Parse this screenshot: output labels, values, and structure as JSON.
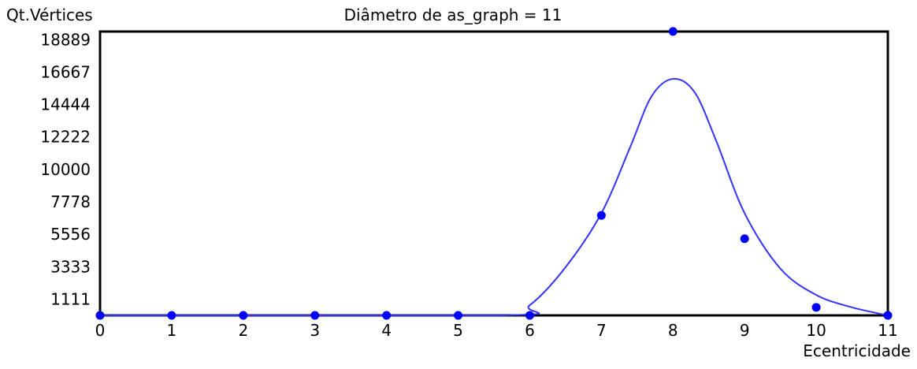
{
  "chart_data": {
    "type": "scatter",
    "title": "Diâmetro de as_graph = 11",
    "ylabel": "Qt.Vértices",
    "xlabel": "Ecentricidade",
    "x_ticks": [
      "0",
      "1",
      "2",
      "3",
      "4",
      "5",
      "6",
      "7",
      "8",
      "9",
      "10",
      "11"
    ],
    "y_ticks": [
      "1111",
      "3333",
      "5556",
      "7778",
      "10000",
      "12222",
      "14444",
      "16667",
      "18889"
    ],
    "xlim": [
      0,
      11
    ],
    "ylim": [
      0,
      19444
    ],
    "grid": false,
    "colors": {
      "points": "#0000ff",
      "curve": "#3333ff",
      "frame": "#000000"
    },
    "points": [
      {
        "x": 0,
        "y": 0
      },
      {
        "x": 1,
        "y": 0
      },
      {
        "x": 2,
        "y": 0
      },
      {
        "x": 3,
        "y": 0
      },
      {
        "x": 4,
        "y": 0
      },
      {
        "x": 5,
        "y": 0
      },
      {
        "x": 6,
        "y": 0
      },
      {
        "x": 7,
        "y": 6850
      },
      {
        "x": 8,
        "y": 19450
      },
      {
        "x": 9,
        "y": 5250
      },
      {
        "x": 10,
        "y": 550
      },
      {
        "x": 11,
        "y": 0
      }
    ],
    "curve": [
      {
        "x": 0,
        "y": 0
      },
      {
        "x": 5.6,
        "y": 0
      },
      {
        "x": 6.0,
        "y": 700
      },
      {
        "x": 6.5,
        "y": 3300
      },
      {
        "x": 7.0,
        "y": 7000
      },
      {
        "x": 7.4,
        "y": 11500
      },
      {
        "x": 7.7,
        "y": 15000
      },
      {
        "x": 8.0,
        "y": 16200
      },
      {
        "x": 8.3,
        "y": 15300
      },
      {
        "x": 8.6,
        "y": 12000
      },
      {
        "x": 9.0,
        "y": 7000
      },
      {
        "x": 9.5,
        "y": 3200
      },
      {
        "x": 10.0,
        "y": 1400
      },
      {
        "x": 10.5,
        "y": 550
      },
      {
        "x": 11.0,
        "y": 0
      }
    ]
  }
}
